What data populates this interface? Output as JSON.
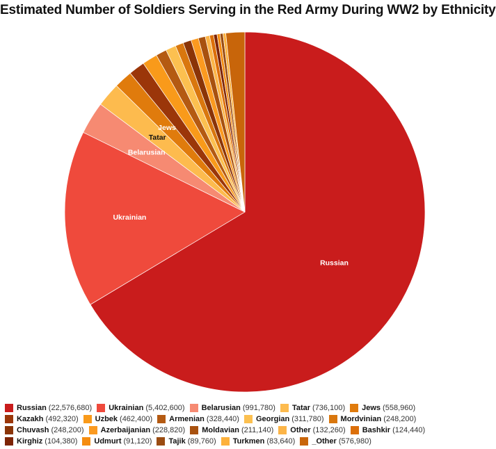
{
  "chart_data": {
    "type": "pie",
    "title": "Estimated Number of Soldiers Serving in the Red Army During WW2 by Ethnicity",
    "legend_position": "bottom",
    "slices": [
      {
        "label": "Russian",
        "value": 22576680,
        "value_text": "(22,576,680)",
        "color": "#c91c1c",
        "show_label": true
      },
      {
        "label": "Ukrainian",
        "value": 5402600,
        "value_text": "(5,402,600)",
        "color": "#ef4a3c",
        "show_label": true
      },
      {
        "label": "Belarusian",
        "value": 991780,
        "value_text": "(991,780)",
        "color": "#f68a72",
        "show_label": true
      },
      {
        "label": "Tatar",
        "value": 736100,
        "value_text": "(736,100)",
        "color": "#fdbb4e",
        "show_label": true
      },
      {
        "label": "Jews",
        "value": 558960,
        "value_text": "(558,960)",
        "color": "#e07b0c",
        "show_label": true
      },
      {
        "label": "Kazakh",
        "value": 492320,
        "value_text": "(492,320)",
        "color": "#9b3609",
        "show_label": false
      },
      {
        "label": "Uzbek",
        "value": 462400,
        "value_text": "(462,400)",
        "color": "#f99a1a",
        "show_label": false
      },
      {
        "label": "Armenian",
        "value": 328440,
        "value_text": "(328,440)",
        "color": "#b45a12",
        "show_label": false
      },
      {
        "label": "Georgian",
        "value": 311780,
        "value_text": "(311,780)",
        "color": "#fcc050",
        "show_label": false
      },
      {
        "label": "Mordvinian",
        "value": 248200,
        "value_text": "(248,200)",
        "color": "#d9770e",
        "show_label": false
      },
      {
        "label": "Chuvash",
        "value": 248200,
        "value_text": "(248,200)",
        "color": "#8a3407",
        "show_label": false
      },
      {
        "label": "Azerbaijanian",
        "value": 228820,
        "value_text": "(228,820)",
        "color": "#fb9a20",
        "show_label": false
      },
      {
        "label": "Moldavian",
        "value": 211140,
        "value_text": "(211,140)",
        "color": "#a8510f",
        "show_label": false
      },
      {
        "label": "Other",
        "value": 132260,
        "value_text": "(132,260)",
        "color": "#fcb548",
        "show_label": false
      },
      {
        "label": "Bashkir",
        "value": 124440,
        "value_text": "(124,440)",
        "color": "#dc6f0a",
        "show_label": false
      },
      {
        "label": "Kirghiz",
        "value": 104380,
        "value_text": "(104,380)",
        "color": "#7d2405",
        "show_label": false
      },
      {
        "label": "Udmurt",
        "value": 91120,
        "value_text": "(91,120)",
        "color": "#f58d10",
        "show_label": false
      },
      {
        "label": "Tajik",
        "value": 89760,
        "value_text": "(89,760)",
        "color": "#9a4c12",
        "show_label": false
      },
      {
        "label": "Turkmen",
        "value": 83640,
        "value_text": "(83,640)",
        "color": "#fdb13c",
        "show_label": false
      },
      {
        "label": "_Other",
        "value": 576980,
        "value_text": "(576,980)",
        "color": "#c8650a",
        "show_label": false
      }
    ]
  }
}
